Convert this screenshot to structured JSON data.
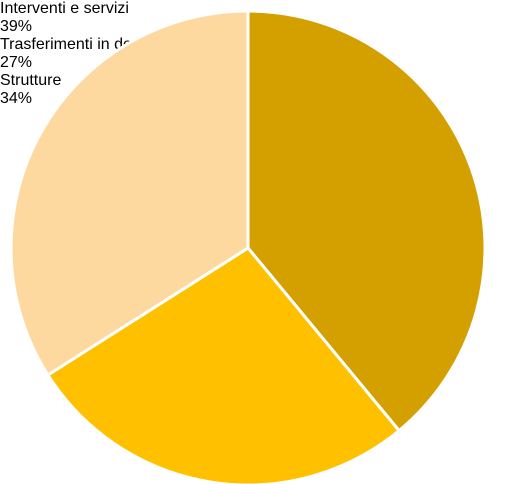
{
  "chart_data": {
    "type": "pie",
    "categories": [
      "Interventi e servizi",
      "Trasferimenti in denaro",
      "Strutture"
    ],
    "values": [
      39,
      27,
      34
    ],
    "value_labels": [
      "39%",
      "27%",
      "34%"
    ],
    "colors": [
      "#d4a000",
      "#ffc000",
      "#fdd9a0"
    ]
  }
}
